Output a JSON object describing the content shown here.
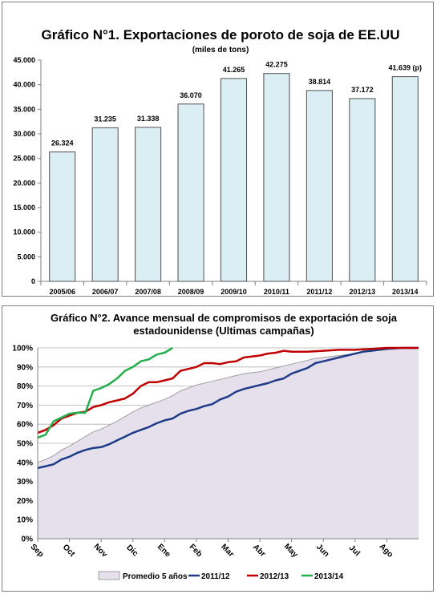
{
  "chart_data": [
    {
      "type": "bar",
      "title": "Gráfico N°1. Exportaciones de poroto de soja de EE.UU",
      "subtitle": "(miles de tons)",
      "categories": [
        "2005/06",
        "2006/07",
        "2007/08",
        "2008/09",
        "2009/10",
        "2010/11",
        "2011/12",
        "2012/13",
        "2013/14"
      ],
      "values": [
        26324,
        31235,
        31338,
        36070,
        41265,
        42275,
        38814,
        37172,
        41639
      ],
      "data_labels": [
        "26.324",
        "31.235",
        "31.338",
        "36.070",
        "41.265",
        "42.275",
        "38.814",
        "37.172",
        "41.639 (p)"
      ],
      "ylim": [
        0,
        45000
      ],
      "y_ticks": [
        0,
        5000,
        10000,
        15000,
        20000,
        25000,
        30000,
        35000,
        40000,
        45000
      ],
      "y_tick_labels": [
        "0",
        "5.000",
        "10.000",
        "15.000",
        "20.000",
        "25.000",
        "30.000",
        "35.000",
        "40.000",
        "45.000"
      ],
      "grid": false,
      "colors": {
        "bar_fill": "#dbeef4",
        "bar_stroke": "#4f4f4f"
      }
    },
    {
      "type": "line",
      "title": "Gráfico N°2. Avance mensual de compromisos de exportación de soja estadounidense (Ultimas campañas)",
      "title_lines": [
        "Gráfico N°2. Avance mensual de compromisos de exportación de soja",
        "estadounidense (Ultimas campañas)"
      ],
      "x_labels": [
        "Sep",
        "Oct",
        "Nov",
        "Dic",
        "Ene",
        "Feb",
        "Mar",
        "Abr",
        "May",
        "Jun",
        "Jul",
        "Ago"
      ],
      "x_range": [
        0,
        12
      ],
      "ylim": [
        0,
        100
      ],
      "y_ticks": [
        0,
        10,
        20,
        30,
        40,
        50,
        60,
        70,
        80,
        90,
        100
      ],
      "y_tick_labels": [
        "0%",
        "10%",
        "20%",
        "30%",
        "40%",
        "50%",
        "60%",
        "70%",
        "80%",
        "90%",
        "100%"
      ],
      "legend_position": "bottom",
      "grid": true,
      "series": [
        {
          "name": "Promedio 5 años",
          "kind": "area",
          "color": "#e6e0ec",
          "stroke": "#9f9f9f",
          "x": [
            0,
            0.25,
            0.5,
            0.75,
            1,
            1.25,
            1.5,
            1.75,
            2,
            2.25,
            2.5,
            2.75,
            3,
            3.25,
            3.5,
            3.75,
            4,
            4.25,
            4.5,
            4.75,
            5,
            5.25,
            5.5,
            5.75,
            6,
            6.25,
            6.5,
            6.75,
            7,
            7.25,
            7.5,
            7.75,
            8,
            8.25,
            8.5,
            8.75,
            9,
            9.5,
            10,
            10.5,
            11,
            11.5,
            12
          ],
          "y": [
            40,
            41.5,
            43.5,
            46.5,
            48.5,
            51,
            53.5,
            56,
            57.5,
            59.5,
            61.5,
            64,
            66.5,
            68.5,
            70,
            71.5,
            73,
            75,
            77.5,
            79,
            80.5,
            81.5,
            82.5,
            83.5,
            84.5,
            85.5,
            86.5,
            87,
            87.5,
            88.5,
            89.5,
            90.5,
            91.5,
            92.5,
            93.5,
            94.5,
            95,
            96,
            97,
            98.5,
            99.5,
            100,
            100
          ]
        },
        {
          "name": "2011/12",
          "kind": "line",
          "color": "#1f3c88",
          "x": [
            0,
            0.25,
            0.5,
            0.75,
            1,
            1.25,
            1.5,
            1.75,
            2,
            2.25,
            2.5,
            2.75,
            3,
            3.25,
            3.5,
            3.75,
            4,
            4.25,
            4.5,
            4.75,
            5,
            5.25,
            5.5,
            5.75,
            6,
            6.25,
            6.5,
            6.75,
            7,
            7.25,
            7.5,
            7.75,
            8,
            8.25,
            8.5,
            8.75,
            9,
            9.25,
            9.5,
            9.75,
            10,
            10.25,
            10.5,
            11,
            11.5,
            12
          ],
          "y": [
            37,
            38,
            39,
            41.5,
            43,
            45,
            46.5,
            47.5,
            48,
            49.5,
            51.5,
            53.5,
            55.5,
            57,
            58.5,
            60.5,
            62,
            63,
            65.5,
            67,
            68,
            69.5,
            70.5,
            73,
            74.5,
            77,
            78.5,
            79.5,
            80.5,
            81.5,
            83,
            84,
            86.5,
            88,
            89.5,
            92,
            93,
            94,
            95,
            96,
            97,
            98,
            98.5,
            99.5,
            100,
            100
          ]
        },
        {
          "name": "2012/13",
          "kind": "line",
          "color": "#c00000",
          "x": [
            0,
            0.25,
            0.5,
            0.75,
            1,
            1.25,
            1.5,
            1.75,
            2,
            2.25,
            2.5,
            2.75,
            3,
            3.25,
            3.5,
            3.75,
            4,
            4.25,
            4.5,
            4.75,
            5,
            5.25,
            5.5,
            5.75,
            6,
            6.25,
            6.5,
            6.75,
            7,
            7.25,
            7.5,
            7.75,
            8,
            8.5,
            9,
            9.5,
            10,
            10.5,
            11,
            11.5,
            12
          ],
          "y": [
            55.5,
            57,
            59.5,
            63,
            64.5,
            66,
            66.5,
            69,
            70,
            71.5,
            72.5,
            73.5,
            76,
            80,
            82,
            82,
            83,
            84,
            88,
            89,
            90,
            92,
            92,
            91.5,
            92.5,
            93,
            95,
            95.5,
            96,
            97,
            97.5,
            98.5,
            98,
            98,
            98.5,
            99,
            99,
            99.5,
            100,
            100,
            100
          ]
        },
        {
          "name": "2013/14",
          "kind": "line",
          "color": "#21b04b",
          "x": [
            0,
            0.25,
            0.5,
            0.75,
            1,
            1.25,
            1.5,
            1.75,
            2,
            2.25,
            2.5,
            2.75,
            3,
            3.25,
            3.5,
            3.75,
            4,
            4.25
          ],
          "y": [
            53,
            54.5,
            61.5,
            63.5,
            65.5,
            66,
            66,
            77.5,
            79,
            81,
            84,
            88,
            90,
            93,
            94,
            96.5,
            97.5,
            100
          ]
        }
      ]
    }
  ]
}
